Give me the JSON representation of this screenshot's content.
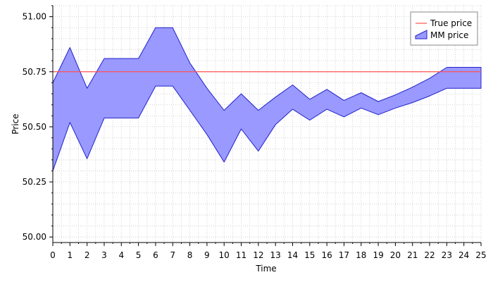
{
  "chart_data": {
    "type": "area",
    "xlabel": "Time",
    "ylabel": "Price",
    "xlim": [
      0,
      25
    ],
    "ylim": [
      49.975,
      51.05
    ],
    "x_ticks": [
      0,
      1,
      2,
      3,
      4,
      5,
      6,
      7,
      8,
      9,
      10,
      11,
      12,
      13,
      14,
      15,
      16,
      17,
      18,
      19,
      20,
      21,
      22,
      23,
      24,
      25
    ],
    "y_ticks": [
      50.0,
      50.25,
      50.5,
      50.75,
      51.0
    ],
    "y_tick_labels": [
      "50.00",
      "50.25",
      "50.50",
      "50.75",
      "51.00"
    ],
    "grid": true,
    "legend_position": "top-right",
    "series": [
      {
        "name": "True price",
        "kind": "line",
        "color": "#ff5050",
        "x": [
          0,
          25
        ],
        "y": [
          50.75,
          50.75
        ]
      },
      {
        "name": "MM price",
        "kind": "band",
        "fill": "#9999ff",
        "stroke": "#2020cc",
        "x": [
          0,
          1,
          2,
          3,
          4,
          5,
          6,
          7,
          8,
          9,
          10,
          11,
          12,
          13,
          14,
          15,
          16,
          17,
          18,
          19,
          20,
          21,
          22,
          23,
          24,
          25
        ],
        "upper": [
          50.7,
          50.86,
          50.675,
          50.81,
          50.81,
          50.81,
          50.95,
          50.95,
          50.79,
          50.675,
          50.575,
          50.65,
          50.575,
          50.635,
          50.69,
          50.625,
          50.67,
          50.62,
          50.655,
          50.615,
          50.645,
          50.68,
          50.72,
          50.77,
          50.77,
          50.77
        ],
        "lower": [
          50.3,
          50.52,
          50.355,
          50.54,
          50.54,
          50.54,
          50.685,
          50.685,
          50.575,
          50.465,
          50.34,
          50.49,
          50.39,
          50.51,
          50.58,
          50.53,
          50.58,
          50.545,
          50.585,
          50.555,
          50.585,
          50.61,
          50.64,
          50.675,
          50.675,
          50.675
        ]
      }
    ]
  }
}
